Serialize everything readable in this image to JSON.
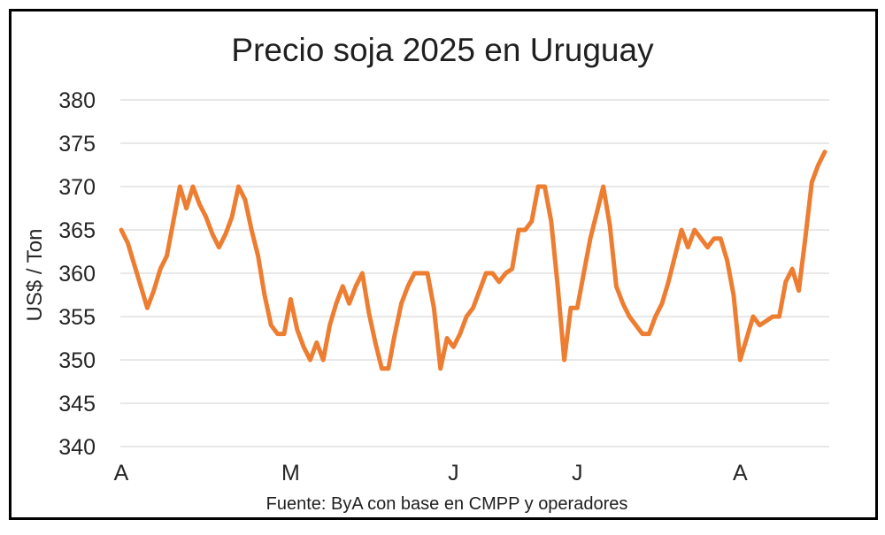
{
  "window": {
    "background_color": "#ffffff",
    "border_color": "#000000"
  },
  "chart_data": {
    "type": "line",
    "title": "Precio soja 2025 en Uruguay",
    "ylabel": "US$ / Ton",
    "xlabel": "",
    "source_note": "Fuente: ByA con base en CMPP y operadores",
    "unit": "US$ / Ton",
    "ylim": [
      340,
      380
    ],
    "yticks": [
      340,
      345,
      350,
      355,
      360,
      365,
      370,
      375,
      380
    ],
    "grid": true,
    "grid_color": "#d9d9d9",
    "legend": "none",
    "x_axis_labels": [
      {
        "label": "A",
        "index": 0
      },
      {
        "label": "M",
        "index": 26
      },
      {
        "label": "J",
        "index": 51
      },
      {
        "label": "J",
        "index": 70
      },
      {
        "label": "A",
        "index": 95
      }
    ],
    "series": [
      {
        "name": "Precio soja 2025",
        "color": "#ED7D31",
        "values": [
          365,
          363.5,
          361,
          358.5,
          356,
          358,
          360.5,
          362,
          366,
          370,
          367.5,
          370,
          368,
          366.5,
          364.5,
          363,
          364.5,
          366.5,
          370,
          368.5,
          365,
          362,
          357.5,
          354,
          353,
          353,
          357,
          353.5,
          351.5,
          350,
          352,
          350,
          354,
          356.5,
          358.5,
          356.5,
          358.5,
          360,
          355.5,
          352,
          349,
          349,
          353,
          356.5,
          358.5,
          360,
          360,
          360,
          356,
          349,
          352.5,
          351.5,
          353,
          355,
          356,
          358,
          360,
          360,
          359,
          360,
          360.5,
          365,
          365,
          366,
          370,
          370,
          366,
          358.5,
          350,
          356,
          356,
          360,
          364,
          367,
          370,
          365.5,
          358.5,
          356.5,
          355,
          354,
          353,
          353,
          355,
          356.5,
          359,
          362,
          365,
          363,
          365,
          364,
          363,
          364,
          364,
          361.5,
          357.5,
          350,
          352.5,
          355,
          354,
          354.5,
          355,
          355,
          359,
          360.5,
          358,
          364,
          370.5,
          372.5,
          374
        ]
      }
    ]
  }
}
